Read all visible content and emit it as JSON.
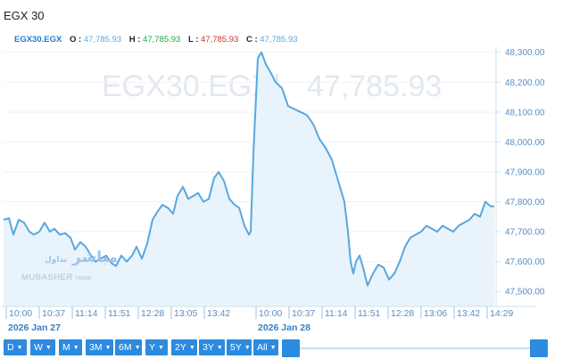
{
  "header": {
    "title": "EGX 30"
  },
  "ohlc": {
    "symbol": "EGX30.EGX",
    "o_label": "O :",
    "o_value": "47,785.93",
    "h_label": "H :",
    "h_value": "47,785.93",
    "l_label": "L :",
    "l_value": "47,785.93",
    "c_label": "C :",
    "c_value": "47,785.93"
  },
  "watermark": {
    "symbol": "EGX30.EGX",
    "separator": "|",
    "price": "47,785.93"
  },
  "brand": {
    "arabic": "مباشر",
    "arabic_small": "تداول",
    "english": "MUBASHER",
    "english_small": "TRADE"
  },
  "chart_data": {
    "type": "area",
    "ylim": [
      47450,
      48320
    ],
    "y_ticks": [
      47500,
      47600,
      47700,
      47800,
      47900,
      48000,
      48100,
      48200,
      48300
    ],
    "y_tick_labels": [
      "47,500.00",
      "47,600.00",
      "47,700.00",
      "47,800.00",
      "47,900.00",
      "48,000.00",
      "48,100.00",
      "48,200.00",
      "48,300.00"
    ],
    "x_ticks": [
      0,
      37,
      74,
      111,
      148,
      185,
      222,
      280,
      317,
      354,
      391,
      428,
      465,
      502,
      539
    ],
    "x_tick_labels": [
      "10:00",
      "10:37",
      "11:14",
      "11:51",
      "12:28",
      "13:05",
      "13:42",
      "10:00",
      "10:37",
      "11:14",
      "11:51",
      "12:28",
      "13:06",
      "13:42",
      "14:29"
    ],
    "date_labels": [
      {
        "x": 0,
        "label": "2026 Jan 27"
      },
      {
        "x": 280,
        "label": "2026 Jan 28"
      }
    ],
    "line_color": "#59a7df",
    "fill_color": "#e8f3fb",
    "series": [
      {
        "x": [
          0,
          6,
          11,
          17,
          23,
          29,
          34,
          40,
          46,
          52,
          57,
          63,
          69,
          75,
          80,
          86,
          92,
          98,
          103,
          109,
          115,
          121,
          126,
          132,
          138,
          144,
          149,
          155,
          161,
          167,
          172,
          178,
          184,
          190,
          195,
          201,
          207,
          213,
          218,
          224,
          230,
          236,
          241,
          247,
          253,
          259,
          264,
          270,
          275,
          277,
          280,
          285,
          289,
          294,
          298,
          305,
          312,
          319,
          326,
          333,
          340,
          347,
          354,
          361,
          368,
          375,
          382,
          386,
          389,
          392,
          395,
          399,
          403,
          408,
          414,
          420,
          426,
          432,
          438,
          444,
          450,
          456,
          462,
          468,
          474,
          480,
          486,
          492,
          498,
          504,
          510,
          516,
          522,
          528,
          534,
          540,
          546,
          550
        ],
        "y": [
          47740,
          47745,
          47690,
          47740,
          47730,
          47700,
          47690,
          47700,
          47730,
          47700,
          47710,
          47690,
          47695,
          47680,
          47640,
          47665,
          47650,
          47620,
          47600,
          47610,
          47620,
          47595,
          47585,
          47620,
          47600,
          47620,
          47650,
          47610,
          47660,
          47740,
          47765,
          47790,
          47780,
          47760,
          47820,
          47850,
          47810,
          47820,
          47830,
          47800,
          47810,
          47880,
          47900,
          47870,
          47810,
          47790,
          47780,
          47720,
          47690,
          47700,
          47960,
          48280,
          48300,
          48260,
          48240,
          48200,
          48180,
          48120,
          48110,
          48100,
          48090,
          48060,
          48010,
          47980,
          47940,
          47870,
          47800,
          47700,
          47600,
          47560,
          47600,
          47620,
          47580,
          47520,
          47560,
          47590,
          47580,
          47540,
          47560,
          47600,
          47650,
          47680,
          47690,
          47700,
          47720,
          47710,
          47700,
          47720,
          47710,
          47700,
          47720,
          47730,
          47740,
          47760,
          47750,
          47800,
          47785,
          47785
        ]
      }
    ]
  },
  "toolbar": {
    "buttons": [
      "D",
      "W",
      "M",
      "3M",
      "6M",
      "Y",
      "2Y",
      "3Y",
      "5Y",
      "All"
    ],
    "arrow": "▼"
  },
  "colors": {
    "accent": "#2c8be0",
    "axis_text": "#5a8ec3"
  }
}
